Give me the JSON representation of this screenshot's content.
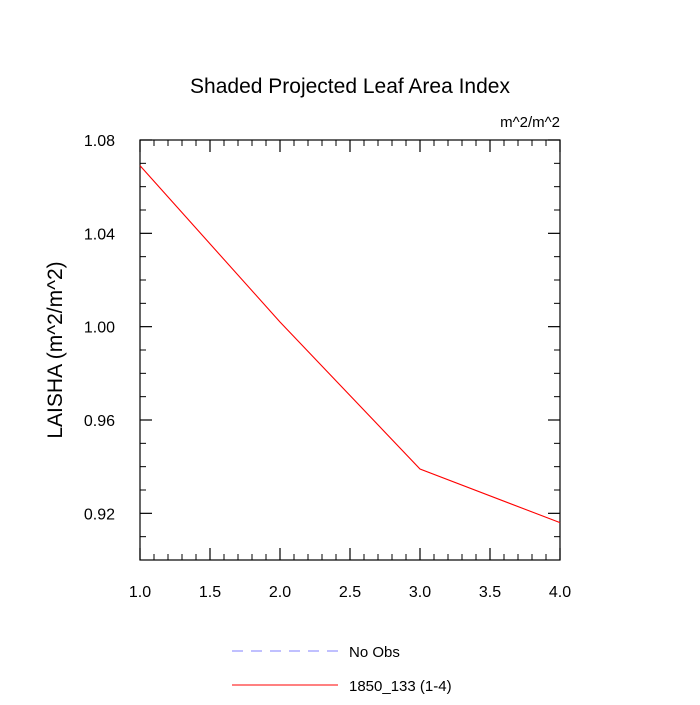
{
  "chart_data": {
    "type": "line",
    "title": "Shaded Projected Leaf Area Index",
    "units_label": "m^2/m^2",
    "xlabel": "",
    "ylabel": "LAISHA  (m^2/m^2)",
    "xlim": [
      1.0,
      4.0
    ],
    "ylim": [
      0.9,
      1.08
    ],
    "x_ticks": [
      1.0,
      1.5,
      2.0,
      2.5,
      3.0,
      3.5,
      4.0
    ],
    "x_tick_labels": [
      "1.0",
      "1.5",
      "2.0",
      "2.5",
      "3.0",
      "3.5",
      "4.0"
    ],
    "y_ticks": [
      0.92,
      0.96,
      1.0,
      1.04,
      1.08
    ],
    "y_tick_labels": [
      "0.92",
      "0.96",
      "1.00",
      "1.04",
      "1.08"
    ],
    "grid": false,
    "series": [
      {
        "name": "1850_133 (1-4)",
        "color": "#ff0000",
        "style": "solid",
        "x": [
          1,
          2,
          3,
          4
        ],
        "values": [
          1.069,
          1.002,
          0.939,
          0.916
        ]
      }
    ],
    "legend": {
      "placement": "bottom-center",
      "entries": [
        {
          "label": "No Obs",
          "color": "#8080ff",
          "style": "dashed"
        },
        {
          "label": "1850_133 (1-4)",
          "color": "#ff0000",
          "style": "solid"
        }
      ]
    }
  }
}
